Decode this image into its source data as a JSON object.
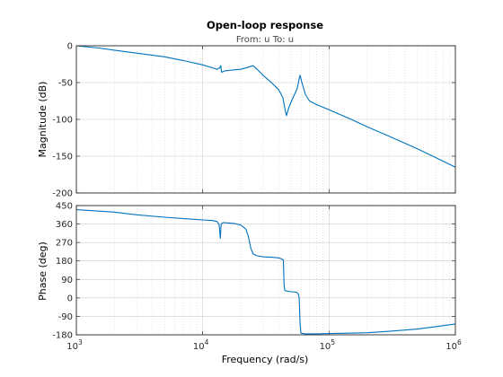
{
  "chart_data": {
    "type": "line",
    "title": "Open-loop response",
    "subtitle": "From: u  To: u",
    "xlabel": "Frequency  (rad/s)",
    "x_scale": "log",
    "xlim": [
      1000,
      1000000
    ],
    "x_ticks": [
      1000,
      10000,
      100000,
      1000000
    ],
    "x_tick_labels": [
      {
        "base": "10",
        "exp": "3"
      },
      {
        "base": "10",
        "exp": "4"
      },
      {
        "base": "10",
        "exp": "5"
      },
      {
        "base": "10",
        "exp": "6"
      }
    ],
    "grid": true,
    "line_color": "#0072bd",
    "panels": [
      {
        "name": "magnitude",
        "ylabel": "Magnitude (dB)",
        "ylim": [
          -200,
          0
        ],
        "y_ticks": [
          0,
          -50,
          -100,
          -150,
          -200
        ],
        "y_tick_labels": [
          "0",
          "-50",
          "-100",
          "-150",
          "-200"
        ],
        "x": [
          1000,
          1500,
          2000,
          3000,
          5000,
          7000,
          10000,
          12000,
          13000,
          13600,
          13900,
          14100,
          15000,
          17000,
          20000,
          23000,
          25000,
          27000,
          30000,
          35000,
          40000,
          43000,
          45000,
          46000,
          48000,
          52000,
          56000,
          58000,
          59000,
          61000,
          65000,
          70000,
          80000,
          100000,
          150000,
          200000,
          300000,
          500000,
          700000,
          1000000
        ],
        "y": [
          0,
          -3,
          -6,
          -10,
          -15,
          -20,
          -26,
          -30,
          -32,
          -30,
          -27,
          -36,
          -34,
          -33,
          -32,
          -29,
          -27,
          -32,
          -40,
          -50,
          -60,
          -70,
          -88,
          -95,
          -84,
          -70,
          -58,
          -45,
          -40,
          -50,
          -66,
          -75,
          -80,
          -87,
          -100,
          -110,
          -123,
          -140,
          -152,
          -165
        ]
      },
      {
        "name": "phase",
        "ylabel": "Phase (deg)",
        "ylim": [
          -180,
          450
        ],
        "y_ticks": [
          450,
          360,
          270,
          180,
          90,
          0,
          -90,
          -180
        ],
        "y_tick_labels": [
          "450",
          "360",
          "270",
          "180",
          "90",
          "0",
          "-90",
          "-180"
        ],
        "x": [
          1000,
          2000,
          3000,
          5000,
          8000,
          10000,
          12000,
          13000,
          13500,
          13800,
          14000,
          14500,
          16000,
          18000,
          20000,
          22000,
          23000,
          24000,
          25000,
          27000,
          30000,
          35000,
          40000,
          42000,
          43500,
          44000,
          44500,
          45000,
          50000,
          55000,
          57000,
          58000,
          59000,
          60000,
          65000,
          80000,
          100000,
          200000,
          300000,
          500000,
          700000,
          1000000
        ],
        "y": [
          430,
          418,
          405,
          393,
          384,
          380,
          377,
          372,
          355,
          290,
          360,
          367,
          365,
          362,
          355,
          335,
          300,
          245,
          215,
          205,
          200,
          198,
          195,
          190,
          185,
          70,
          40,
          35,
          30,
          28,
          20,
          0,
          -130,
          -172,
          -175,
          -175,
          -174,
          -170,
          -163,
          -152,
          -140,
          -127
        ]
      }
    ]
  }
}
